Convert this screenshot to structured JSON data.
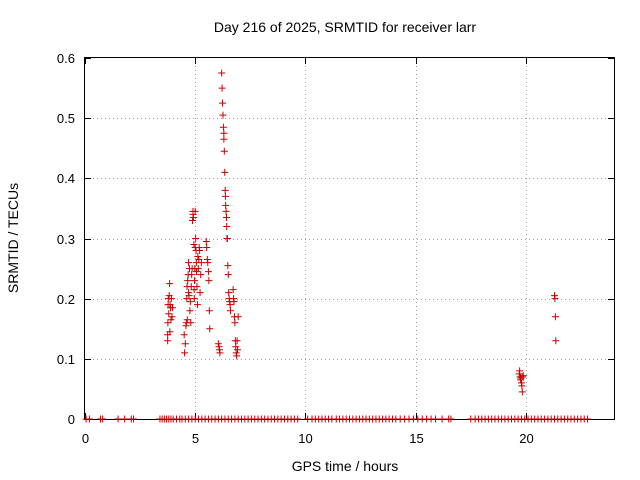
{
  "chart_data": {
    "type": "scatter",
    "title": "Day 216 of 2025, SRMTID for receiver larr",
    "xlabel": "GPS time / hours",
    "ylabel": "SRMTID / TECUs",
    "xlim": [
      0,
      24
    ],
    "ylim": [
      0,
      0.6
    ],
    "xticks": [
      0,
      5,
      10,
      15,
      20
    ],
    "yticks": [
      0,
      0.1,
      0.2,
      0.3,
      0.4,
      0.5,
      0.6
    ],
    "xtick_labels": [
      "0",
      "5",
      "10",
      "15",
      "20"
    ],
    "ytick_labels": [
      "0",
      "0.1",
      "0.2",
      "0.3",
      "0.4",
      "0.5",
      "0.6"
    ],
    "grid": true,
    "marker": "+",
    "series": [
      {
        "name": "SRMTID",
        "color": "#cc0000",
        "points": [
          [
            3.75,
            0.14
          ],
          [
            3.75,
            0.13
          ],
          [
            3.76,
            0.16
          ],
          [
            3.77,
            0.19
          ],
          [
            3.78,
            0.2
          ],
          [
            3.8,
            0.175
          ],
          [
            3.82,
            0.205
          ],
          [
            3.84,
            0.225
          ],
          [
            3.86,
            0.19
          ],
          [
            3.88,
            0.185
          ],
          [
            3.9,
            0.165
          ],
          [
            3.92,
            0.2
          ],
          [
            3.95,
            0.17
          ],
          [
            3.97,
            0.185
          ],
          [
            3.85,
            0.145
          ],
          [
            4.5,
            0.14
          ],
          [
            4.52,
            0.11
          ],
          [
            4.55,
            0.125
          ],
          [
            4.58,
            0.155
          ],
          [
            4.6,
            0.16
          ],
          [
            4.62,
            0.2
          ],
          [
            4.63,
            0.22
          ],
          [
            4.64,
            0.165
          ],
          [
            4.66,
            0.23
          ],
          [
            4.68,
            0.24
          ],
          [
            4.7,
            0.21
          ],
          [
            4.7,
            0.26
          ],
          [
            4.72,
            0.205
          ],
          [
            4.74,
            0.25
          ],
          [
            4.76,
            0.18
          ],
          [
            4.78,
            0.195
          ],
          [
            4.8,
            0.16
          ],
          [
            4.82,
            0.22
          ],
          [
            4.84,
            0.24
          ],
          [
            4.86,
            0.25
          ],
          [
            4.88,
            0.33
          ],
          [
            4.9,
            0.34
          ],
          [
            4.9,
            0.345
          ],
          [
            4.92,
            0.335
          ],
          [
            4.94,
            0.29
          ],
          [
            4.95,
            0.215
          ],
          [
            4.96,
            0.2
          ],
          [
            4.97,
            0.23
          ],
          [
            4.98,
            0.25
          ],
          [
            5.0,
            0.285
          ],
          [
            5.0,
            0.345
          ],
          [
            5.02,
            0.3
          ],
          [
            5.04,
            0.28
          ],
          [
            5.05,
            0.26
          ],
          [
            5.06,
            0.245
          ],
          [
            5.08,
            0.22
          ],
          [
            5.1,
            0.19
          ],
          [
            5.12,
            0.27
          ],
          [
            5.14,
            0.25
          ],
          [
            5.16,
            0.265
          ],
          [
            5.18,
            0.285
          ],
          [
            5.2,
            0.28
          ],
          [
            5.22,
            0.21
          ],
          [
            5.25,
            0.24
          ],
          [
            5.28,
            0.26
          ],
          [
            5.5,
            0.295
          ],
          [
            5.52,
            0.285
          ],
          [
            5.55,
            0.265
          ],
          [
            5.57,
            0.26
          ],
          [
            5.6,
            0.245
          ],
          [
            5.62,
            0.23
          ],
          [
            5.64,
            0.18
          ],
          [
            5.66,
            0.15
          ],
          [
            6.05,
            0.125
          ],
          [
            6.08,
            0.12
          ],
          [
            6.1,
            0.115
          ],
          [
            6.12,
            0.11
          ],
          [
            6.2,
            0.575
          ],
          [
            6.22,
            0.55
          ],
          [
            6.24,
            0.525
          ],
          [
            6.26,
            0.505
          ],
          [
            6.28,
            0.485
          ],
          [
            6.3,
            0.475
          ],
          [
            6.3,
            0.465
          ],
          [
            6.32,
            0.445
          ],
          [
            6.34,
            0.41
          ],
          [
            6.36,
            0.38
          ],
          [
            6.37,
            0.37
          ],
          [
            6.38,
            0.355
          ],
          [
            6.4,
            0.345
          ],
          [
            6.42,
            0.335
          ],
          [
            6.43,
            0.32
          ],
          [
            6.44,
            0.3
          ],
          [
            6.46,
            0.3
          ],
          [
            6.48,
            0.255
          ],
          [
            6.5,
            0.24
          ],
          [
            6.52,
            0.21
          ],
          [
            6.54,
            0.2
          ],
          [
            6.56,
            0.195
          ],
          [
            6.58,
            0.19
          ],
          [
            6.6,
            0.18
          ],
          [
            6.72,
            0.215
          ],
          [
            6.74,
            0.2
          ],
          [
            6.76,
            0.195
          ],
          [
            6.78,
            0.17
          ],
          [
            6.8,
            0.16
          ],
          [
            6.82,
            0.13
          ],
          [
            6.84,
            0.12
          ],
          [
            6.86,
            0.11
          ],
          [
            6.88,
            0.105
          ],
          [
            6.9,
            0.13
          ],
          [
            6.92,
            0.115
          ],
          [
            6.95,
            0.17
          ],
          [
            19.7,
            0.075
          ],
          [
            19.72,
            0.08
          ],
          [
            19.74,
            0.07
          ],
          [
            19.76,
            0.065
          ],
          [
            19.78,
            0.068
          ],
          [
            19.8,
            0.06
          ],
          [
            19.82,
            0.055
          ],
          [
            19.84,
            0.045
          ],
          [
            19.86,
            0.07
          ],
          [
            19.88,
            0.072
          ],
          [
            21.3,
            0.205
          ],
          [
            21.32,
            0.2
          ],
          [
            21.34,
            0.17
          ],
          [
            21.36,
            0.13
          ],
          [
            0.05,
            0
          ],
          [
            0.2,
            0
          ],
          [
            0.7,
            0
          ],
          [
            0.8,
            0
          ],
          [
            1.5,
            0
          ],
          [
            1.8,
            0
          ],
          [
            2.1,
            0
          ],
          [
            2.2,
            0
          ],
          [
            3.4,
            0
          ],
          [
            3.5,
            0
          ],
          [
            3.6,
            0
          ],
          [
            3.7,
            0
          ],
          [
            3.8,
            0
          ],
          [
            3.9,
            0
          ],
          [
            4.0,
            0
          ],
          [
            4.15,
            0
          ],
          [
            4.3,
            0
          ],
          [
            4.4,
            0
          ],
          [
            4.55,
            0
          ],
          [
            4.7,
            0
          ],
          [
            4.85,
            0
          ],
          [
            5.0,
            0
          ],
          [
            5.15,
            0
          ],
          [
            5.3,
            0
          ],
          [
            5.45,
            0
          ],
          [
            5.6,
            0
          ],
          [
            5.75,
            0
          ],
          [
            5.9,
            0
          ],
          [
            6.05,
            0
          ],
          [
            6.2,
            0
          ],
          [
            6.35,
            0
          ],
          [
            6.5,
            0
          ],
          [
            6.65,
            0
          ],
          [
            6.8,
            0
          ],
          [
            6.95,
            0
          ],
          [
            7.1,
            0
          ],
          [
            7.25,
            0
          ],
          [
            7.4,
            0
          ],
          [
            7.55,
            0
          ],
          [
            7.7,
            0
          ],
          [
            7.85,
            0
          ],
          [
            8.0,
            0
          ],
          [
            8.15,
            0
          ],
          [
            8.3,
            0
          ],
          [
            8.45,
            0
          ],
          [
            8.6,
            0
          ],
          [
            8.75,
            0
          ],
          [
            8.9,
            0
          ],
          [
            9.05,
            0
          ],
          [
            9.2,
            0
          ],
          [
            9.35,
            0
          ],
          [
            9.5,
            0
          ],
          [
            9.65,
            0
          ],
          [
            10.1,
            0
          ],
          [
            10.3,
            0
          ],
          [
            10.45,
            0
          ],
          [
            10.6,
            0
          ],
          [
            10.75,
            0
          ],
          [
            10.9,
            0
          ],
          [
            11.05,
            0
          ],
          [
            11.2,
            0
          ],
          [
            11.4,
            0
          ],
          [
            11.55,
            0
          ],
          [
            11.7,
            0
          ],
          [
            11.85,
            0
          ],
          [
            12.0,
            0
          ],
          [
            12.15,
            0
          ],
          [
            12.3,
            0
          ],
          [
            12.45,
            0
          ],
          [
            12.6,
            0
          ],
          [
            12.75,
            0
          ],
          [
            12.9,
            0
          ],
          [
            13.05,
            0
          ],
          [
            13.2,
            0
          ],
          [
            13.35,
            0
          ],
          [
            13.5,
            0
          ],
          [
            13.65,
            0
          ],
          [
            13.8,
            0
          ],
          [
            13.95,
            0
          ],
          [
            14.1,
            0
          ],
          [
            14.3,
            0
          ],
          [
            14.5,
            0
          ],
          [
            14.7,
            0
          ],
          [
            14.9,
            0
          ],
          [
            15.1,
            0
          ],
          [
            15.3,
            0
          ],
          [
            15.5,
            0
          ],
          [
            15.7,
            0
          ],
          [
            15.9,
            0
          ],
          [
            16.2,
            0
          ],
          [
            16.5,
            0
          ],
          [
            16.6,
            0
          ],
          [
            17.5,
            0
          ],
          [
            17.7,
            0
          ],
          [
            17.85,
            0
          ],
          [
            18.0,
            0
          ],
          [
            18.15,
            0
          ],
          [
            18.3,
            0
          ],
          [
            18.45,
            0
          ],
          [
            18.6,
            0
          ],
          [
            18.75,
            0
          ],
          [
            18.9,
            0
          ],
          [
            19.05,
            0
          ],
          [
            19.2,
            0
          ],
          [
            19.35,
            0
          ],
          [
            19.5,
            0
          ],
          [
            19.65,
            0
          ],
          [
            19.8,
            0
          ],
          [
            19.95,
            0
          ],
          [
            20.1,
            0
          ],
          [
            20.25,
            0
          ],
          [
            20.4,
            0
          ],
          [
            20.55,
            0
          ],
          [
            20.7,
            0
          ],
          [
            20.85,
            0
          ],
          [
            21.0,
            0
          ],
          [
            21.15,
            0
          ],
          [
            21.3,
            0
          ],
          [
            21.45,
            0
          ],
          [
            21.6,
            0
          ],
          [
            21.75,
            0
          ],
          [
            21.9,
            0
          ],
          [
            22.05,
            0
          ],
          [
            22.2,
            0
          ],
          [
            22.35,
            0
          ],
          [
            22.5,
            0
          ],
          [
            22.65,
            0
          ],
          [
            22.8,
            0
          ]
        ]
      }
    ]
  }
}
